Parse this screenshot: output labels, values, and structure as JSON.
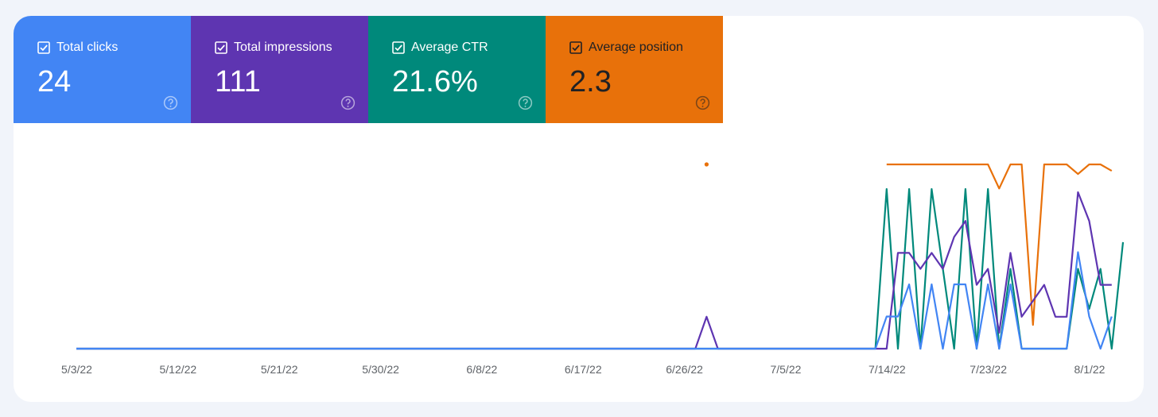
{
  "metrics": [
    {
      "label": "Total clicks",
      "value": "24",
      "color": "#4285f4",
      "text_color": "#ffffff",
      "checked": true
    },
    {
      "label": "Total impressions",
      "value": "111",
      "color": "#5e35b1",
      "text_color": "#ffffff",
      "checked": true
    },
    {
      "label": "Average CTR",
      "value": "21.6%",
      "color": "#00897b",
      "text_color": "#ffffff",
      "checked": true
    },
    {
      "label": "Average position",
      "value": "2.3",
      "color": "#e8710a",
      "text_color": "#202124",
      "checked": true
    }
  ],
  "icons": {
    "checkbox": "checkbox-checked-icon",
    "help": "help-circle-icon"
  },
  "chart_data": {
    "type": "line",
    "x_tick_labels": [
      "5/3/22",
      "5/12/22",
      "5/21/22",
      "5/30/22",
      "6/8/22",
      "6/17/22",
      "6/26/22",
      "7/5/22",
      "7/14/22",
      "7/23/22",
      "8/1/22"
    ],
    "x_start": "5/3/22",
    "x_end": "8/2/22",
    "grid": false,
    "legend": "metric tiles above chart",
    "series": [
      {
        "name": "Total clicks",
        "color": "#4285f4",
        "values": [
          0,
          0,
          0,
          0,
          0,
          0,
          0,
          0,
          0,
          0,
          0,
          0,
          0,
          0,
          0,
          0,
          0,
          0,
          0,
          0,
          0,
          0,
          0,
          0,
          0,
          0,
          0,
          0,
          0,
          0,
          0,
          0,
          0,
          0,
          0,
          0,
          0,
          0,
          0,
          0,
          0,
          0,
          0,
          0,
          0,
          0,
          0,
          0,
          0,
          0,
          0,
          0,
          0,
          0,
          0,
          0,
          0,
          0,
          0,
          0,
          0,
          0,
          0,
          0,
          0,
          0,
          0,
          0,
          0,
          0,
          0,
          0,
          1,
          1,
          2,
          0,
          2,
          0,
          2,
          2,
          0,
          2,
          0,
          2,
          0,
          0,
          0,
          0,
          0,
          3,
          1,
          0,
          1
        ]
      },
      {
        "name": "Total impressions",
        "color": "#5e35b1",
        "values": [
          0,
          0,
          0,
          0,
          0,
          0,
          0,
          0,
          0,
          0,
          0,
          0,
          0,
          0,
          0,
          0,
          0,
          0,
          0,
          0,
          0,
          0,
          0,
          0,
          0,
          0,
          0,
          0,
          0,
          0,
          0,
          0,
          0,
          0,
          0,
          0,
          0,
          0,
          0,
          0,
          0,
          0,
          0,
          0,
          0,
          0,
          0,
          0,
          0,
          0,
          0,
          0,
          0,
          0,
          0,
          0,
          1,
          0,
          0,
          0,
          0,
          0,
          0,
          0,
          0,
          0,
          0,
          0,
          0,
          0,
          0,
          0,
          0,
          3,
          3,
          2.5,
          3,
          2.5,
          3.5,
          4,
          2,
          2.5,
          0.5,
          3,
          1,
          1.5,
          2,
          1,
          1,
          4.9,
          4,
          2,
          2
        ]
      },
      {
        "name": "Average CTR",
        "color": "#00897b",
        "values": [
          0,
          0,
          0,
          0,
          0,
          0,
          0,
          0,
          0,
          0,
          0,
          0,
          0,
          0,
          0,
          0,
          0,
          0,
          0,
          0,
          0,
          0,
          0,
          0,
          0,
          0,
          0,
          0,
          0,
          0,
          0,
          0,
          0,
          0,
          0,
          0,
          0,
          0,
          0,
          0,
          0,
          0,
          0,
          0,
          0,
          0,
          0,
          0,
          0,
          0,
          0,
          0,
          0,
          0,
          0,
          0,
          0,
          0,
          0,
          0,
          0,
          0,
          0,
          0,
          0,
          0,
          0,
          0,
          0,
          0,
          0,
          0,
          100,
          0,
          100,
          0,
          100,
          50,
          0,
          100,
          0,
          100,
          0,
          50,
          0,
          0,
          0,
          0,
          0,
          50,
          25,
          50,
          0,
          66.7
        ]
      },
      {
        "name": "Average position",
        "color": "#e8710a",
        "values": [
          null,
          null,
          null,
          null,
          null,
          null,
          null,
          null,
          null,
          null,
          null,
          null,
          null,
          null,
          null,
          null,
          null,
          null,
          null,
          null,
          null,
          null,
          null,
          null,
          null,
          null,
          null,
          null,
          null,
          null,
          null,
          null,
          null,
          null,
          null,
          null,
          null,
          null,
          null,
          null,
          null,
          null,
          null,
          null,
          null,
          null,
          null,
          null,
          null,
          null,
          null,
          null,
          null,
          null,
          null,
          null,
          1,
          null,
          null,
          null,
          null,
          null,
          null,
          null,
          null,
          null,
          null,
          null,
          null,
          null,
          null,
          null,
          1,
          1,
          1,
          1,
          1,
          1,
          1,
          1,
          1,
          1,
          2.5,
          1,
          1,
          11,
          1,
          1,
          1,
          1.6,
          1,
          1,
          1.4
        ]
      }
    ]
  }
}
